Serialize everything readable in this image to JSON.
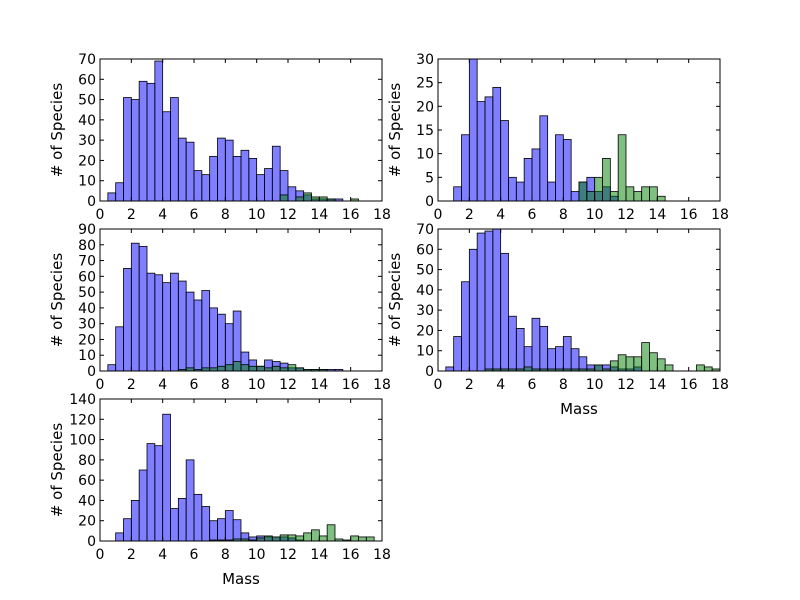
{
  "colors": {
    "series_blue": "#0000ff",
    "series_green": "#008000",
    "bar_edge": "#000000"
  },
  "chart_data": [
    {
      "type": "bar",
      "panel": "top-left",
      "bin_width": 0.5,
      "xlim": [
        0,
        18
      ],
      "ylim": [
        0,
        70
      ],
      "xticks": [
        0,
        2,
        4,
        6,
        8,
        10,
        12,
        14,
        16,
        18
      ],
      "yticks": [
        0,
        10,
        20,
        30,
        40,
        50,
        60,
        70
      ],
      "xlabel": "",
      "ylabel": "# of Species",
      "series": [
        {
          "color": "#0000ff",
          "opacity": 0.5,
          "bin_start": 0.5,
          "values": [
            4,
            9,
            51,
            50,
            59,
            58,
            69,
            44,
            51,
            31,
            29,
            15,
            13,
            22,
            31,
            30,
            22,
            25,
            21,
            13,
            16,
            27,
            15,
            7,
            5,
            3,
            1,
            1,
            1,
            1
          ]
        },
        {
          "color": "#008000",
          "opacity": 0.5,
          "bin_start": 10.0,
          "values": [
            0,
            0,
            0,
            3,
            0,
            2,
            4,
            2,
            2,
            1,
            0,
            0,
            1
          ]
        }
      ]
    },
    {
      "type": "bar",
      "panel": "top-right",
      "bin_width": 0.5,
      "xlim": [
        0,
        18
      ],
      "ylim": [
        0,
        30
      ],
      "xticks": [
        0,
        2,
        4,
        6,
        8,
        10,
        12,
        14,
        16,
        18
      ],
      "yticks": [
        0,
        5,
        10,
        15,
        20,
        25,
        30
      ],
      "xlabel": "",
      "ylabel": "# of Species",
      "series": [
        {
          "color": "#0000ff",
          "opacity": 0.5,
          "bin_start": 1.0,
          "values": [
            3,
            14,
            30,
            21,
            22,
            24,
            17,
            5,
            4,
            9,
            11,
            18,
            4,
            14,
            13,
            2,
            4,
            5,
            2,
            3,
            1
          ]
        },
        {
          "color": "#008000",
          "opacity": 0.5,
          "bin_start": 9.0,
          "values": [
            4,
            2,
            5,
            9,
            2,
            14,
            3,
            2,
            3,
            3,
            1
          ]
        }
      ]
    },
    {
      "type": "bar",
      "panel": "middle-left",
      "bin_width": 0.5,
      "xlim": [
        0,
        18
      ],
      "ylim": [
        0,
        90
      ],
      "xticks": [
        0,
        2,
        4,
        6,
        8,
        10,
        12,
        14,
        16,
        18
      ],
      "yticks": [
        0,
        10,
        20,
        30,
        40,
        50,
        60,
        70,
        80,
        90
      ],
      "xlabel": "",
      "ylabel": "# of Species",
      "series": [
        {
          "color": "#0000ff",
          "opacity": 0.5,
          "bin_start": 0.5,
          "values": [
            4,
            28,
            65,
            81,
            79,
            62,
            61,
            56,
            62,
            57,
            50,
            45,
            51,
            40,
            36,
            30,
            38,
            12,
            7,
            3,
            7,
            6,
            5,
            2,
            2,
            1,
            1,
            1,
            1,
            1
          ]
        },
        {
          "color": "#008000",
          "opacity": 0.5,
          "bin_start": 5.0,
          "values": [
            1,
            2,
            1,
            2,
            2,
            3,
            4,
            6,
            4,
            3,
            3,
            2,
            3,
            2,
            4,
            2,
            1,
            1,
            1
          ]
        }
      ]
    },
    {
      "type": "bar",
      "panel": "middle-right",
      "bin_width": 0.5,
      "xlim": [
        0,
        18
      ],
      "ylim": [
        0,
        70
      ],
      "xticks": [
        0,
        2,
        4,
        6,
        8,
        10,
        12,
        14,
        16,
        18
      ],
      "yticks": [
        0,
        10,
        20,
        30,
        40,
        50,
        60,
        70
      ],
      "xlabel": "Mass",
      "ylabel": "# of Species",
      "series": [
        {
          "color": "#0000ff",
          "opacity": 0.5,
          "bin_start": 0.5,
          "values": [
            2,
            17,
            44,
            60,
            68,
            69,
            70,
            58,
            27,
            21,
            12,
            26,
            22,
            11,
            12,
            17,
            11,
            7,
            3,
            3,
            3,
            2,
            1,
            1,
            2
          ]
        },
        {
          "color": "#008000",
          "opacity": 0.5,
          "bin_start": 3.0,
          "values": [
            1,
            1,
            1,
            1,
            1,
            2,
            1,
            1,
            1,
            1,
            1,
            1,
            1,
            1,
            3,
            1,
            5,
            8,
            7,
            7,
            14,
            9,
            6,
            3,
            0,
            0,
            0,
            3,
            2,
            1
          ]
        }
      ]
    },
    {
      "type": "bar",
      "panel": "bottom-left",
      "bin_width": 0.5,
      "xlim": [
        0,
        18
      ],
      "ylim": [
        0,
        140
      ],
      "xticks": [
        0,
        2,
        4,
        6,
        8,
        10,
        12,
        14,
        16,
        18
      ],
      "yticks": [
        0,
        20,
        40,
        60,
        80,
        100,
        120,
        140
      ],
      "xlabel": "Mass",
      "ylabel": "# of Species",
      "series": [
        {
          "color": "#0000ff",
          "opacity": 0.5,
          "bin_start": 1.0,
          "values": [
            8,
            22,
            40,
            70,
            96,
            94,
            125,
            32,
            42,
            80,
            46,
            34,
            20,
            22,
            30,
            21,
            8,
            4,
            5,
            4,
            4,
            4,
            3,
            1
          ]
        },
        {
          "color": "#008000",
          "opacity": 0.5,
          "bin_start": 7.0,
          "values": [
            1,
            1,
            1,
            2,
            2,
            1,
            3,
            5,
            4,
            6,
            6,
            5,
            8,
            11,
            5,
            16,
            2,
            1,
            5,
            4,
            4
          ]
        }
      ]
    }
  ]
}
